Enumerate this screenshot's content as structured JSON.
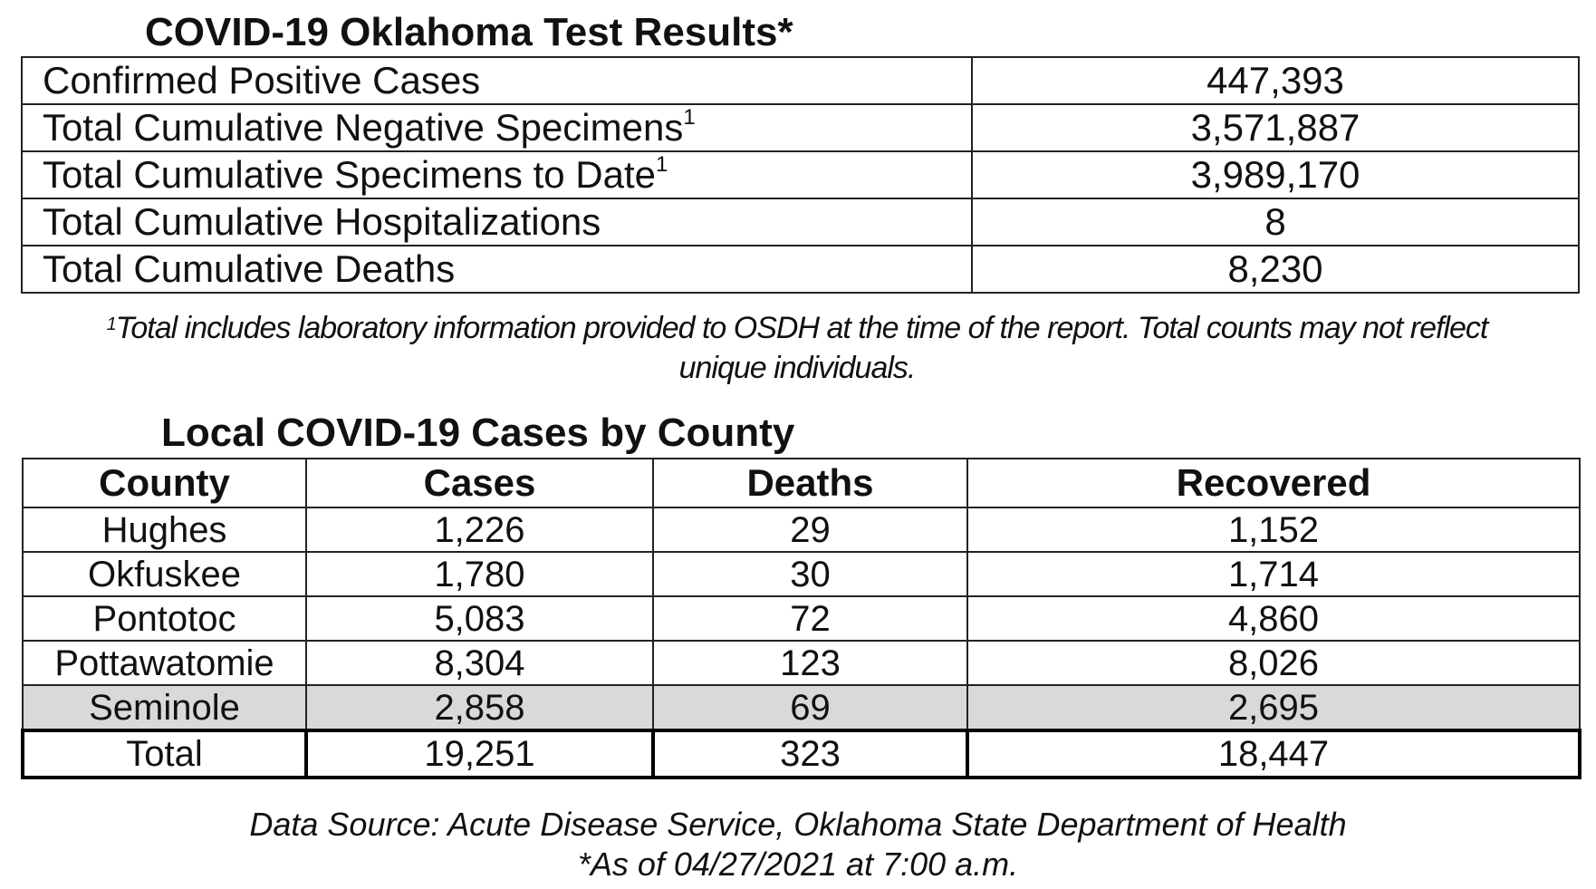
{
  "title_tests": "COVID-19 Oklahoma Test Results*",
  "tests": [
    {
      "label": "Confirmed Positive Cases",
      "sup": "",
      "value": "447,393"
    },
    {
      "label": "Total Cumulative Negative Specimens",
      "sup": "1",
      "value": "3,571,887"
    },
    {
      "label": "Total Cumulative Specimens to Date",
      "sup": "1",
      "value": "3,989,170"
    },
    {
      "label": "Total Cumulative Hospitalizations",
      "sup": "",
      "value": "8"
    },
    {
      "label": "Total Cumulative Deaths",
      "sup": "",
      "value": "8,230"
    }
  ],
  "footnote": {
    "mark": "1",
    "line1": "Total includes laboratory information provided to OSDH at the time of the report. Total counts may not reflect",
    "line2": "unique individuals."
  },
  "title_county": "Local COVID-19 Cases by County",
  "county_table": {
    "headers": [
      "County",
      "Cases",
      "Deaths",
      "Recovered"
    ],
    "rows": [
      [
        "Hughes",
        "1,226",
        "29",
        "1,152"
      ],
      [
        "Okfuskee",
        "1,780",
        "30",
        "1,714"
      ],
      [
        "Pontotoc",
        "5,083",
        "72",
        "4,860"
      ],
      [
        "Pottawatomie",
        "8,304",
        "123",
        "8,026"
      ],
      [
        "Seminole",
        "2,858",
        "69",
        "2,695"
      ]
    ],
    "total": [
      "Total",
      "19,251",
      "323",
      "18,447"
    ]
  },
  "source_line1": "Data Source: Acute Disease Service, Oklahoma State Department of Health",
  "source_line2": "*As of 04/27/2021 at 7:00 a.m."
}
